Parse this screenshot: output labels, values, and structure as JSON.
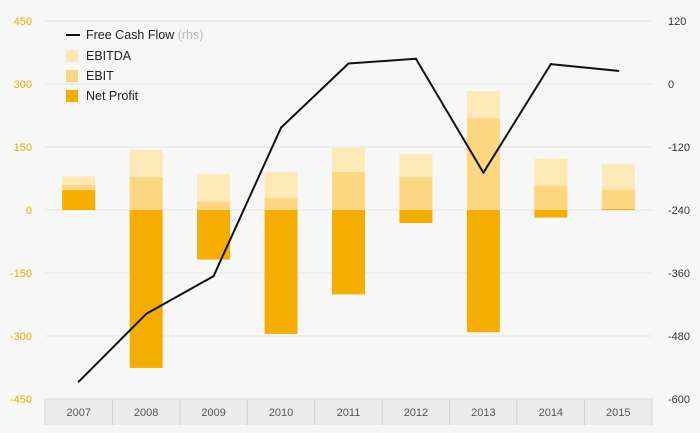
{
  "chart_data": {
    "type": "bar",
    "categories": [
      "2007",
      "2008",
      "2009",
      "2010",
      "2011",
      "2012",
      "2013",
      "2014",
      "2015"
    ],
    "series": [
      {
        "name": "EBITDA",
        "values": [
          80,
          143,
          85,
          90,
          148,
          133,
          283,
          122,
          110
        ],
        "color": "#fde9b8"
      },
      {
        "name": "EBIT",
        "values": [
          60,
          78,
          20,
          28,
          90,
          78,
          218,
          58,
          48
        ],
        "color": "#fcd680"
      },
      {
        "name": "Net Profit",
        "values": [
          47,
          -376,
          -118,
          -295,
          -201,
          -31,
          -291,
          -18,
          2
        ],
        "color": "#f5ad00"
      }
    ],
    "line_series": {
      "name": "Free Cash Flow",
      "name_suffix": "(rhs)",
      "axis": "right",
      "color": "#111111",
      "values": [
        -567,
        -438,
        -366,
        -83,
        39,
        48,
        -169,
        38,
        25
      ]
    },
    "y_left": {
      "min": -450,
      "max": 450,
      "ticks": [
        -450,
        -300,
        -150,
        0,
        150,
        300,
        450
      ],
      "color": "#f0a800"
    },
    "y_right": {
      "min": -600,
      "max": 120,
      "ticks": [
        -600,
        -480,
        -360,
        -240,
        -120,
        0,
        120
      ],
      "color": "#333333"
    },
    "grid": true,
    "legend_position": "top-left"
  }
}
